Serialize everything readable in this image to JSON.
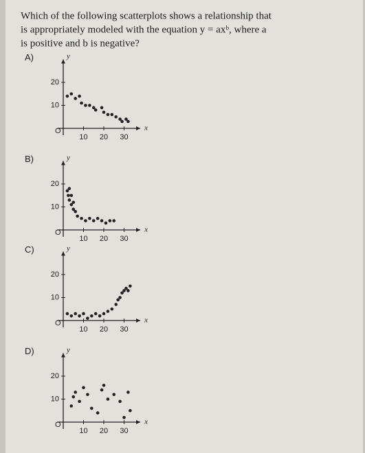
{
  "question": [
    "Which of the following scatterplots shows a relationship that",
    "is appropriately modeled with the equation y = axᵇ, where a",
    "is positive and b is negative?"
  ],
  "chart_data": [
    {
      "type": "scatter",
      "label": "A)",
      "x_label": "x",
      "y_label": "y",
      "origin_label": "O",
      "color": "#222",
      "x": [
        2,
        4,
        6,
        8,
        9,
        11,
        13,
        15,
        16,
        19,
        20,
        22,
        24,
        26,
        28,
        29,
        31,
        32
      ],
      "values": [
        14,
        15,
        13,
        14,
        11,
        10,
        10,
        9,
        8,
        9,
        7,
        6,
        6,
        5,
        4,
        3,
        4,
        3
      ],
      "xlim": [
        -3,
        38
      ],
      "ylim": [
        -3,
        30
      ],
      "xticks": [
        10,
        20,
        30
      ],
      "yticks": [
        10,
        20
      ]
    },
    {
      "type": "scatter",
      "label": "B)",
      "x_label": "x",
      "y_label": "y",
      "origin_label": "O",
      "color": "#222",
      "x": [
        2,
        2.5,
        3,
        3,
        4,
        4,
        5,
        5,
        6,
        7,
        9,
        11,
        13,
        15,
        17,
        19,
        21,
        23,
        25
      ],
      "values": [
        17,
        15,
        18,
        13,
        15,
        11,
        12,
        9,
        8,
        6,
        5,
        4,
        5,
        4,
        5,
        4,
        3,
        4,
        4
      ],
      "xlim": [
        -3,
        38
      ],
      "ylim": [
        -3,
        30
      ],
      "xticks": [
        10,
        20,
        30
      ],
      "yticks": [
        10,
        20
      ]
    },
    {
      "type": "scatter",
      "label": "C)",
      "x_label": "x",
      "y_label": "y",
      "origin_label": "O",
      "color": "#222",
      "x": [
        2,
        4,
        6,
        8,
        10,
        12,
        14,
        16,
        18,
        20,
        22,
        24,
        26,
        27,
        28,
        29,
        30,
        31,
        32,
        33
      ],
      "values": [
        3,
        2,
        3,
        2,
        3,
        1,
        2,
        3,
        2,
        3,
        4,
        5,
        7,
        9,
        10,
        12,
        13,
        14,
        13,
        15
      ],
      "xlim": [
        -3,
        38
      ],
      "ylim": [
        -3,
        30
      ],
      "xticks": [
        10,
        20,
        30
      ],
      "yticks": [
        10,
        20
      ]
    },
    {
      "type": "scatter",
      "label": "D)",
      "x_label": "x",
      "y_label": "y",
      "origin_label": "O",
      "color": "#222",
      "x": [
        4,
        5,
        6,
        8,
        10,
        12,
        14,
        17,
        19,
        20,
        22,
        25,
        28,
        30,
        32,
        33
      ],
      "values": [
        7,
        11,
        13,
        9,
        15,
        12,
        6,
        4,
        14,
        16,
        10,
        12,
        9,
        2,
        13,
        5
      ],
      "xlim": [
        -3,
        38
      ],
      "ylim": [
        -3,
        30
      ],
      "xticks": [
        10,
        20,
        30
      ],
      "yticks": [
        10,
        20
      ]
    }
  ]
}
